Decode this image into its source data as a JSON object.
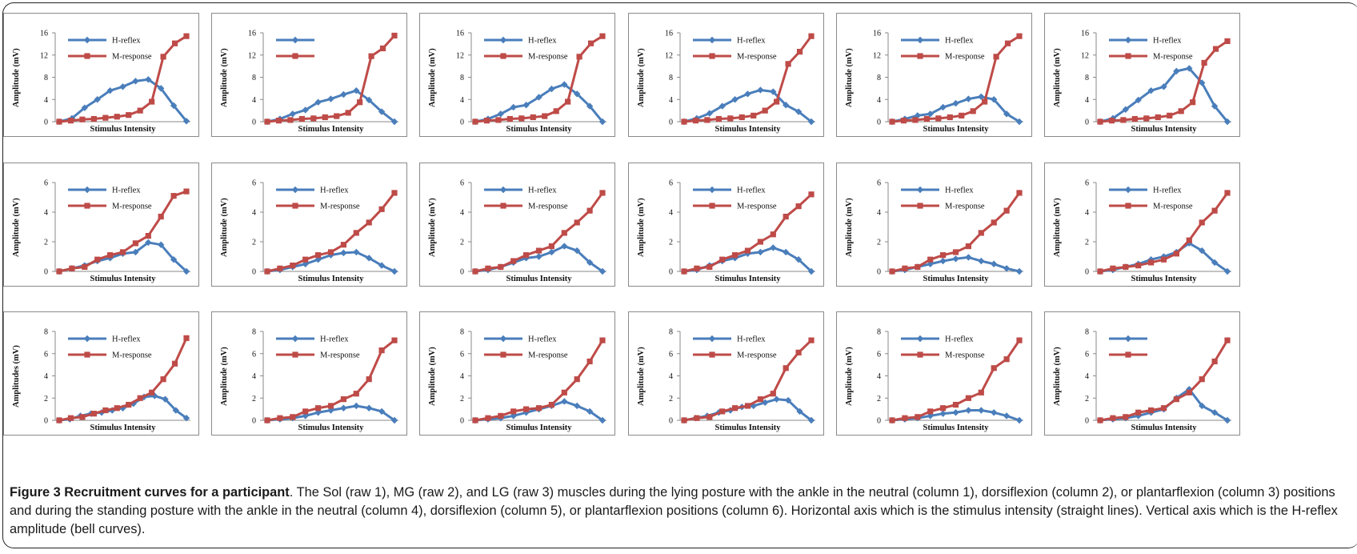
{
  "figure": {
    "caption_title": "Figure 3 Recruitment curves for a participant",
    "caption_text": ". The Sol (raw 1), MG (raw 2), and LG (raw 3) muscles during the lying posture with the ankle in the neutral (column 1), dorsiflexion (column 2), or plantarflexion (column 3) positions and during the standing posture with the ankle in the neutral (column 4), dorsiflexion (column 5), or plantarflexion positions (column 6). Horizontal axis which is the stimulus intensity (straight lines). Vertical axis which is the H-reflex amplitude (bell curves)."
  },
  "colors": {
    "h_reflex": "#4a7ebb",
    "m_response": "#be4b48"
  },
  "icons": {
    "h_reflex_marker": "diamond",
    "m_response_marker": "square"
  },
  "chart_data": [
    {
      "type": "line",
      "row": 1,
      "col": 1,
      "xlabel": "Stimulus Intensity",
      "ylabel": "Amplitude (mV)",
      "ylim": [
        0,
        16
      ],
      "yticks": [
        0,
        4,
        8,
        12,
        16
      ],
      "legend": "top-left",
      "series": [
        {
          "name": "H-reflex",
          "values": [
            0,
            0.6,
            2.5,
            4,
            5.6,
            6.3,
            7.3,
            7.6,
            6,
            2.9,
            0.1
          ]
        },
        {
          "name": "M-response",
          "values": [
            0,
            0.2,
            0.4,
            0.5,
            0.7,
            0.9,
            1.2,
            2,
            3.6,
            11.7,
            14.1,
            15.4
          ]
        }
      ]
    },
    {
      "type": "line",
      "row": 1,
      "col": 2,
      "xlabel": "Stimulus Intensity",
      "ylabel": "Amplitude (mV)",
      "ylim": [
        0,
        16
      ],
      "yticks": [
        0,
        4,
        8,
        12,
        16
      ],
      "legend": "top-left",
      "series": [
        {
          "name": "",
          "values": [
            0,
            0.5,
            1.4,
            2.1,
            3.5,
            4.1,
            4.9,
            5.6,
            3.9,
            1.8,
            0
          ]
        },
        {
          "name": "",
          "values": [
            0,
            0.2,
            0.3,
            0.5,
            0.6,
            0.8,
            1,
            1.6,
            3.5,
            11.8,
            13.2,
            15.5
          ]
        }
      ]
    },
    {
      "type": "line",
      "row": 1,
      "col": 3,
      "xlabel": "Stimulus Intensity",
      "ylabel": "Amplitude (mV)",
      "ylim": [
        0,
        16
      ],
      "yticks": [
        0,
        4,
        8,
        12,
        16
      ],
      "legend": "top-left",
      "series": [
        {
          "name": "H-reflex",
          "values": [
            0,
            0.5,
            1.4,
            2.6,
            3,
            4.4,
            5.9,
            6.7,
            5,
            2.8,
            0
          ]
        },
        {
          "name": "M-response",
          "values": [
            0,
            0.2,
            0.3,
            0.5,
            0.6,
            0.8,
            1,
            1.9,
            3.6,
            11.7,
            14.1,
            15.4
          ]
        }
      ]
    },
    {
      "type": "line",
      "row": 1,
      "col": 4,
      "xlabel": "Stimulus Intensity",
      "ylabel": "Amplitude (mV)",
      "ylim": [
        0,
        16
      ],
      "yticks": [
        0,
        4,
        8,
        12,
        16
      ],
      "legend": "top-left",
      "series": [
        {
          "name": "H-reflex",
          "values": [
            0,
            0.6,
            1.5,
            2.8,
            4,
            5,
            5.7,
            5.4,
            3,
            1.8,
            0
          ]
        },
        {
          "name": "M-response",
          "values": [
            0,
            0.2,
            0.3,
            0.5,
            0.6,
            0.8,
            1.1,
            2,
            3.6,
            10.4,
            12.6,
            15.4
          ]
        }
      ]
    },
    {
      "type": "line",
      "row": 1,
      "col": 5,
      "xlabel": "Stimulus Intensity",
      "ylabel": "Amplitude (mV)",
      "ylim": [
        0,
        16
      ],
      "yticks": [
        0,
        4,
        8,
        12,
        16
      ],
      "legend": "top-left",
      "series": [
        {
          "name": "H-reflex",
          "values": [
            0,
            0.5,
            1.1,
            1.4,
            2.6,
            3.3,
            4.1,
            4.5,
            4,
            1.4,
            0
          ]
        },
        {
          "name": "M-response",
          "values": [
            0,
            0.2,
            0.3,
            0.5,
            0.6,
            0.8,
            1.1,
            1.9,
            3.6,
            11.7,
            14.1,
            15.4
          ]
        }
      ]
    },
    {
      "type": "line",
      "row": 1,
      "col": 6,
      "xlabel": "Stimulus Intensity",
      "ylabel": "Amplitude (mV)",
      "ylim": [
        0,
        16
      ],
      "yticks": [
        0,
        4,
        8,
        12,
        16
      ],
      "legend": "top-left",
      "series": [
        {
          "name": "H-reflex",
          "values": [
            0,
            0.6,
            2.2,
            3.9,
            5.6,
            6.3,
            9.1,
            9.6,
            7,
            2.8,
            0
          ]
        },
        {
          "name": "M-response",
          "values": [
            0,
            0.2,
            0.3,
            0.5,
            0.6,
            0.8,
            1.1,
            1.9,
            3.5,
            10.6,
            13.1,
            14.5
          ]
        }
      ]
    },
    {
      "type": "line",
      "row": 2,
      "col": 1,
      "xlabel": "Stimulus Intensity",
      "ylabel": "Amplitude (mV)",
      "ylim": [
        0,
        6
      ],
      "yticks": [
        0,
        2,
        4,
        6
      ],
      "legend": "top-left",
      "series": [
        {
          "name": "H-reflex",
          "values": [
            0,
            0.2,
            0.4,
            0.7,
            0.9,
            1.2,
            1.3,
            1.95,
            1.8,
            0.8,
            0
          ]
        },
        {
          "name": "M-response",
          "values": [
            0,
            0.2,
            0.3,
            0.8,
            1.1,
            1.3,
            1.9,
            2.4,
            3.7,
            5.1,
            5.4
          ]
        }
      ]
    },
    {
      "type": "line",
      "row": 2,
      "col": 2,
      "xlabel": "Stimulus Intensity",
      "ylabel": "Amplitude (mV)",
      "ylim": [
        0,
        6
      ],
      "yticks": [
        0,
        2,
        4,
        6
      ],
      "legend": "top-left",
      "series": [
        {
          "name": "H-reflex",
          "values": [
            0,
            0.1,
            0.3,
            0.5,
            0.8,
            1.1,
            1.25,
            1.3,
            0.9,
            0.4,
            0
          ]
        },
        {
          "name": "M-response",
          "values": [
            0,
            0.2,
            0.4,
            0.8,
            1.1,
            1.3,
            1.8,
            2.6,
            3.3,
            4.2,
            5.3
          ]
        }
      ]
    },
    {
      "type": "line",
      "row": 2,
      "col": 3,
      "xlabel": "Stimulus Intensity",
      "ylabel": "Amplitude (mV)",
      "ylim": [
        0,
        6
      ],
      "yticks": [
        0,
        2,
        4,
        6
      ],
      "legend": "top-left",
      "series": [
        {
          "name": "H-reflex",
          "values": [
            0,
            0.1,
            0.3,
            0.6,
            0.9,
            1,
            1.3,
            1.7,
            1.4,
            0.6,
            0
          ]
        },
        {
          "name": "M-response",
          "values": [
            0,
            0.2,
            0.3,
            0.7,
            1.1,
            1.4,
            1.7,
            2.6,
            3.3,
            4.1,
            5.3
          ]
        }
      ]
    },
    {
      "type": "line",
      "row": 2,
      "col": 4,
      "xlabel": "Stimulus Intensity",
      "ylabel": "Amplitude (mV)",
      "ylim": [
        0,
        6
      ],
      "yticks": [
        0,
        2,
        4,
        6
      ],
      "legend": "top-left",
      "series": [
        {
          "name": "H-reflex",
          "values": [
            0,
            0.1,
            0.4,
            0.7,
            0.9,
            1.2,
            1.3,
            1.6,
            1.3,
            0.8,
            0
          ]
        },
        {
          "name": "M-response",
          "values": [
            0,
            0.2,
            0.3,
            0.8,
            1.1,
            1.4,
            2,
            2.5,
            3.7,
            4.4,
            5.2
          ]
        }
      ]
    },
    {
      "type": "line",
      "row": 2,
      "col": 5,
      "xlabel": "Stimulus Intensity",
      "ylabel": "Amplitude (mV)",
      "ylim": [
        0,
        6
      ],
      "yticks": [
        0,
        2,
        4,
        6
      ],
      "legend": "top-left",
      "series": [
        {
          "name": "H-reflex",
          "values": [
            0,
            0.1,
            0.3,
            0.5,
            0.7,
            0.85,
            0.95,
            0.7,
            0.5,
            0.2,
            0
          ]
        },
        {
          "name": "M-response",
          "values": [
            0,
            0.2,
            0.3,
            0.8,
            1.1,
            1.3,
            1.7,
            2.6,
            3.3,
            4.1,
            5.3
          ]
        }
      ]
    },
    {
      "type": "line",
      "row": 2,
      "col": 6,
      "xlabel": "Stimulus Intensity",
      "ylabel": "Amplitude (mV)",
      "ylim": [
        0,
        6
      ],
      "yticks": [
        0,
        2,
        4,
        6
      ],
      "legend": "top-left",
      "series": [
        {
          "name": "H-reflex",
          "values": [
            0,
            0.1,
            0.3,
            0.5,
            0.8,
            1,
            1.3,
            1.9,
            1.4,
            0.6,
            0
          ]
        },
        {
          "name": "M-response",
          "values": [
            0,
            0.2,
            0.3,
            0.4,
            0.6,
            0.8,
            1.2,
            2.1,
            3.3,
            4.1,
            5.3
          ]
        }
      ]
    },
    {
      "type": "line",
      "row": 3,
      "col": 1,
      "xlabel": "Stimulus Intensity",
      "ylabel": "Amplitudes (mV)",
      "ylim": [
        0,
        8
      ],
      "yticks": [
        0,
        2,
        4,
        6,
        8
      ],
      "legend": "top-left",
      "series": [
        {
          "name": "H-reflex",
          "values": [
            0,
            0.1,
            0.4,
            0.6,
            0.7,
            0.9,
            1.1,
            1.5,
            2.1,
            2.2,
            1.9,
            0.9,
            0.2
          ]
        },
        {
          "name": "M-response",
          "values": [
            0,
            0.2,
            0.3,
            0.6,
            0.9,
            1.1,
            1.4,
            2,
            2.5,
            3.7,
            5.1,
            7.4
          ]
        }
      ]
    },
    {
      "type": "line",
      "row": 3,
      "col": 2,
      "xlabel": "Stimulus Intensity",
      "ylabel": "Amplitude (mV)",
      "ylim": [
        0,
        8
      ],
      "yticks": [
        0,
        2,
        4,
        6,
        8
      ],
      "legend": "top-left",
      "series": [
        {
          "name": "H-reflex",
          "values": [
            0,
            0.1,
            0.2,
            0.4,
            0.7,
            0.9,
            1.1,
            1.3,
            1.1,
            0.8,
            0
          ]
        },
        {
          "name": "M-response",
          "values": [
            0,
            0.2,
            0.3,
            0.8,
            1.1,
            1.3,
            1.9,
            2.4,
            3.7,
            6.3,
            7.2
          ]
        }
      ]
    },
    {
      "type": "line",
      "row": 3,
      "col": 3,
      "xlabel": "Stimulus Intensity",
      "ylabel": "Amplitude (mV)",
      "ylim": [
        0,
        8
      ],
      "yticks": [
        0,
        2,
        4,
        6,
        8
      ],
      "legend": "top-left",
      "series": [
        {
          "name": "H-reflex",
          "values": [
            0,
            0.1,
            0.2,
            0.4,
            0.7,
            1,
            1.3,
            1.7,
            1.3,
            0.8,
            0
          ]
        },
        {
          "name": "M-response",
          "values": [
            0,
            0.2,
            0.4,
            0.8,
            1,
            1.1,
            1.4,
            2.5,
            3.7,
            5.3,
            7.2
          ]
        }
      ]
    },
    {
      "type": "line",
      "row": 3,
      "col": 4,
      "xlabel": "Stimulus Intensity",
      "ylabel": "Amplitude (mV)",
      "ylim": [
        0,
        8
      ],
      "yticks": [
        0,
        2,
        4,
        6,
        8
      ],
      "legend": "top-left",
      "series": [
        {
          "name": "H-reflex",
          "values": [
            0,
            0.2,
            0.4,
            0.7,
            0.9,
            1.2,
            1.3,
            1.6,
            1.9,
            1.8,
            0.8,
            0
          ]
        },
        {
          "name": "M-response",
          "values": [
            0,
            0.2,
            0.3,
            0.8,
            1.1,
            1.3,
            1.9,
            2.4,
            4.7,
            6.1,
            7.2
          ]
        }
      ]
    },
    {
      "type": "line",
      "row": 3,
      "col": 5,
      "xlabel": "Stimulus Intensity",
      "ylabel": "Amplitude (mV)",
      "ylim": [
        0,
        8
      ],
      "yticks": [
        0,
        2,
        4,
        6,
        8
      ],
      "legend": "top-left",
      "series": [
        {
          "name": "H-reflex",
          "values": [
            0,
            0.1,
            0.2,
            0.4,
            0.6,
            0.7,
            0.9,
            0.9,
            0.7,
            0.4,
            0
          ]
        },
        {
          "name": "M-response",
          "values": [
            0,
            0.2,
            0.3,
            0.8,
            1.1,
            1.4,
            2,
            2.5,
            4.7,
            5.5,
            7.2
          ]
        }
      ]
    },
    {
      "type": "line",
      "row": 3,
      "col": 6,
      "xlabel": "Stimulus Intensity",
      "ylabel": "Amplitude (mV)",
      "ylim": [
        0,
        8
      ],
      "yticks": [
        0,
        2,
        4,
        6,
        8
      ],
      "legend": "top-left",
      "series": [
        {
          "name": "",
          "values": [
            0,
            0.1,
            0.2,
            0.4,
            0.7,
            1,
            2,
            2.8,
            1.3,
            0.7,
            0
          ]
        },
        {
          "name": "",
          "values": [
            0,
            0.2,
            0.3,
            0.7,
            0.9,
            1.1,
            1.9,
            2.5,
            3.7,
            5.3,
            7.2
          ]
        }
      ]
    }
  ]
}
